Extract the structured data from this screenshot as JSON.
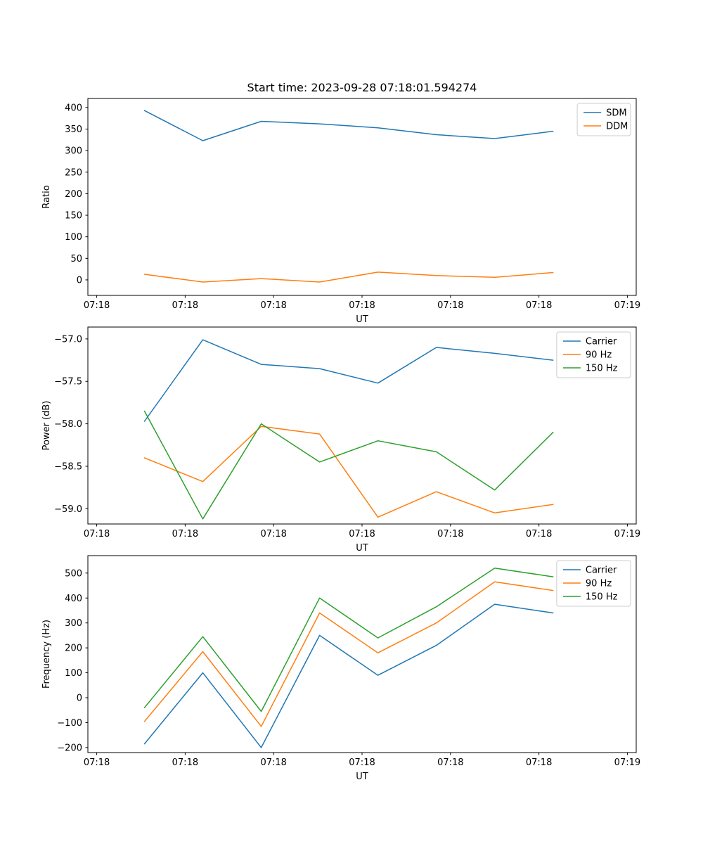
{
  "figure": {
    "background": "#ffffff"
  },
  "palette": {
    "blue": "#1f77b4",
    "orange": "#ff7f0e",
    "green": "#2ca02c",
    "legend_border": "#cccccc",
    "axis": "#000000"
  },
  "chart_data": [
    {
      "type": "line",
      "title": "Start time: 2023-09-28 07:18:01.594274",
      "xlabel": "UT",
      "ylabel": "Ratio",
      "grid": false,
      "legend_position": "upper right",
      "xlim": [
        -1,
        61
      ],
      "ylim": [
        -36,
        421
      ],
      "x_unit": "seconds after 07:18:00 UT",
      "x_tick_values": [
        0,
        10,
        20,
        30,
        40,
        50,
        60
      ],
      "x_tick_labels": [
        "07:18",
        "07:18",
        "07:18",
        "07:18",
        "07:18",
        "07:18",
        "07:19"
      ],
      "y_tick_values": [
        0,
        50,
        100,
        150,
        200,
        250,
        300,
        350,
        400
      ],
      "y_tick_labels": [
        "0",
        "50",
        "100",
        "150",
        "200",
        "250",
        "300",
        "350",
        "400"
      ],
      "x": [
        5.4,
        12.0,
        18.6,
        25.2,
        31.8,
        38.4,
        45.0,
        51.6
      ],
      "series": [
        {
          "name": "SDM",
          "color": "#1f77b4",
          "values": [
            393,
            323,
            368,
            362,
            353,
            337,
            328,
            345
          ]
        },
        {
          "name": "DDM",
          "color": "#ff7f0e",
          "values": [
            13,
            -5,
            3,
            -5,
            18,
            10,
            6,
            17
          ]
        }
      ]
    },
    {
      "type": "line",
      "title": "",
      "xlabel": "UT",
      "ylabel": "Power (dB)",
      "grid": false,
      "legend_position": "upper right",
      "xlim": [
        -1,
        61
      ],
      "ylim": [
        -59.18,
        -56.86
      ],
      "x_unit": "seconds after 07:18:00 UT",
      "x_tick_values": [
        0,
        10,
        20,
        30,
        40,
        50,
        60
      ],
      "x_tick_labels": [
        "07:18",
        "07:18",
        "07:18",
        "07:18",
        "07:18",
        "07:18",
        "07:19"
      ],
      "y_tick_values": [
        -59.0,
        -58.5,
        -58.0,
        -57.5,
        -57.0
      ],
      "y_tick_labels": [
        "−59.0",
        "−58.5",
        "−58.0",
        "−57.5",
        "−57.0"
      ],
      "x": [
        5.4,
        12.0,
        18.6,
        25.2,
        31.8,
        38.4,
        45.0,
        51.6
      ],
      "series": [
        {
          "name": "Carrier",
          "color": "#1f77b4",
          "values": [
            -57.97,
            -57.01,
            -57.3,
            -57.35,
            -57.52,
            -57.1,
            -57.17,
            -57.25
          ]
        },
        {
          "name": "90 Hz",
          "color": "#ff7f0e",
          "values": [
            -58.4,
            -58.68,
            -58.03,
            -58.12,
            -59.1,
            -58.8,
            -59.05,
            -58.95
          ]
        },
        {
          "name": "150 Hz",
          "color": "#2ca02c",
          "values": [
            -57.85,
            -59.12,
            -58.0,
            -58.45,
            -58.2,
            -58.33,
            -58.78,
            -58.1
          ]
        }
      ]
    },
    {
      "type": "line",
      "title": "",
      "xlabel": "UT",
      "ylabel": "Frequency (Hz)",
      "grid": false,
      "legend_position": "upper right",
      "xlim": [
        -1,
        61
      ],
      "ylim": [
        -220,
        570
      ],
      "x_unit": "seconds after 07:18:00 UT",
      "x_tick_values": [
        0,
        10,
        20,
        30,
        40,
        50,
        60
      ],
      "x_tick_labels": [
        "07:18",
        "07:18",
        "07:18",
        "07:18",
        "07:18",
        "07:18",
        "07:19"
      ],
      "y_tick_values": [
        -200,
        -100,
        0,
        100,
        200,
        300,
        400,
        500
      ],
      "y_tick_labels": [
        "−200",
        "−100",
        "0",
        "100",
        "200",
        "300",
        "400",
        "500"
      ],
      "x": [
        5.4,
        12.0,
        18.6,
        25.2,
        31.8,
        38.4,
        45.0,
        51.6
      ],
      "series": [
        {
          "name": "Carrier",
          "color": "#1f77b4",
          "values": [
            -185,
            100,
            -200,
            250,
            90,
            210,
            375,
            340
          ]
        },
        {
          "name": "90 Hz",
          "color": "#ff7f0e",
          "values": [
            -95,
            185,
            -115,
            340,
            180,
            300,
            465,
            430
          ]
        },
        {
          "name": "150 Hz",
          "color": "#2ca02c",
          "values": [
            -40,
            245,
            -55,
            400,
            240,
            365,
            520,
            485
          ]
        }
      ]
    }
  ]
}
